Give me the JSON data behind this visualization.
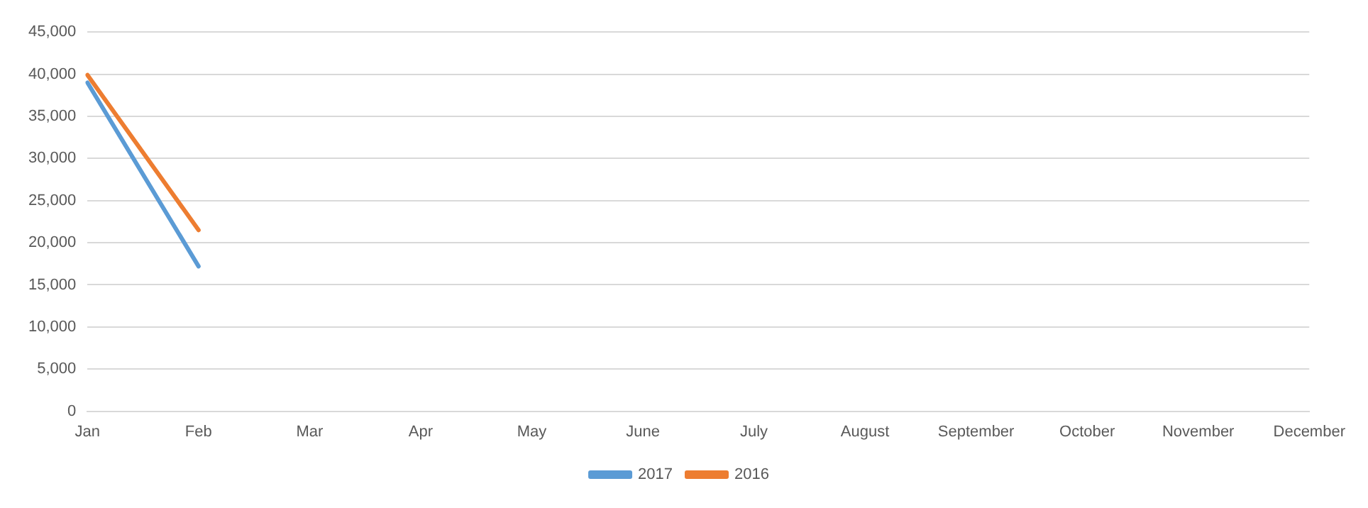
{
  "chart_data": {
    "type": "line",
    "categories": [
      "Jan",
      "Feb",
      "Mar",
      "Apr",
      "May",
      "June",
      "July",
      "August",
      "September",
      "October",
      "November",
      "December"
    ],
    "series": [
      {
        "name": "2017",
        "color": "#5b9bd5",
        "values": [
          39000,
          17200,
          null,
          null,
          null,
          null,
          null,
          null,
          null,
          null,
          null,
          null
        ]
      },
      {
        "name": "2016",
        "color": "#ed7d31",
        "values": [
          39900,
          21500,
          null,
          null,
          null,
          null,
          null,
          null,
          null,
          null,
          null,
          null
        ]
      }
    ],
    "ylim": [
      0,
      45000
    ],
    "yticks": [
      {
        "value": 0,
        "label": "0"
      },
      {
        "value": 5000,
        "label": "5,000"
      },
      {
        "value": 10000,
        "label": "10,000"
      },
      {
        "value": 15000,
        "label": "15,000"
      },
      {
        "value": 20000,
        "label": "20,000"
      },
      {
        "value": 25000,
        "label": "25,000"
      },
      {
        "value": 30000,
        "label": "30,000"
      },
      {
        "value": 35000,
        "label": "35,000"
      },
      {
        "value": 40000,
        "label": "40,000"
      },
      {
        "value": 45000,
        "label": "45,000"
      }
    ],
    "grid": "y",
    "legend": "bottom",
    "marker": "none",
    "line_style": "solid"
  }
}
